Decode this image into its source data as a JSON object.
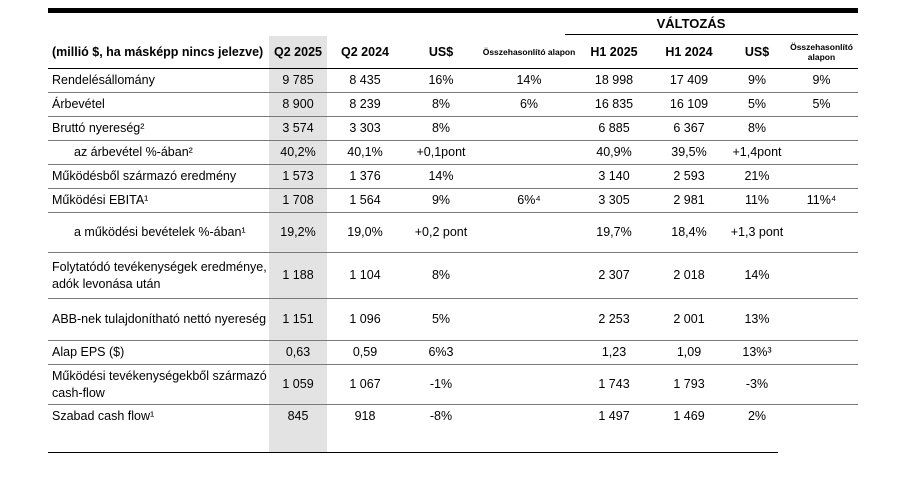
{
  "table": {
    "section_title": "VÁLTOZÁS",
    "headers": {
      "label": "(millió $, ha másképp nincs jelezve)",
      "q2_2025": "Q2 2025",
      "q2_2024": "Q2 2024",
      "usd_q": "US$",
      "comp_q": "Összehasonlító alapon",
      "h1_2025": "H1 2025",
      "h1_2024": "H1 2024",
      "usd_h": "US$",
      "comp_h": "Összehasonlító alapon"
    },
    "rows": [
      {
        "label": "Rendelésállomány",
        "q2_2025": "9 785",
        "q2_2024": "8 435",
        "usd_q": "16%",
        "comp_q": "14%",
        "h1_2025": "18 998",
        "h1_2024": "17 409",
        "usd_h": "9%",
        "comp_h": "9%"
      },
      {
        "label": "Árbevétel",
        "q2_2025": "8 900",
        "q2_2024": "8 239",
        "usd_q": "8%",
        "comp_q": "6%",
        "h1_2025": "16 835",
        "h1_2024": "16 109",
        "usd_h": "5%",
        "comp_h": "5%"
      },
      {
        "label": "Bruttó nyereség²",
        "q2_2025": "3 574",
        "q2_2024": "3 303",
        "usd_q": "8%",
        "comp_q": "",
        "h1_2025": "6 885",
        "h1_2024": "6 367",
        "usd_h": "8%",
        "comp_h": ""
      },
      {
        "label": "az árbevétel %-ában²",
        "q2_2025": "40,2%",
        "q2_2024": "40,1%",
        "usd_q": "+0,1pont",
        "comp_q": "",
        "h1_2025": "40,9%",
        "h1_2024": "39,5%",
        "usd_h": "+1,4pont",
        "comp_h": ""
      },
      {
        "label": "Működésből származó eredmény",
        "q2_2025": "1 573",
        "q2_2024": "1 376",
        "usd_q": "14%",
        "comp_q": "",
        "h1_2025": "3 140",
        "h1_2024": "2 593",
        "usd_h": "21%",
        "comp_h": ""
      },
      {
        "label": "Működési EBITA¹",
        "q2_2025": "1 708",
        "q2_2024": "1 564",
        "usd_q": "9%",
        "comp_q": "6%⁴",
        "h1_2025": "3 305",
        "h1_2024": "2 981",
        "usd_h": "11%",
        "comp_h": "11%⁴"
      },
      {
        "label": "a működési bevételek %-ában¹",
        "q2_2025": "19,2%",
        "q2_2024": "19,0%",
        "usd_q": "+0,2 pont",
        "comp_q": "",
        "h1_2025": "19,7%",
        "h1_2024": "18,4%",
        "usd_h": "+1,3 pont",
        "comp_h": ""
      },
      {
        "label": "Folytatódó tevékenységek eredménye, adók levonása után",
        "q2_2025": "1 188",
        "q2_2024": "1 104",
        "usd_q": "8%",
        "comp_q": "",
        "h1_2025": "2 307",
        "h1_2024": "2 018",
        "usd_h": "14%",
        "comp_h": ""
      },
      {
        "label": "ABB-nek tulajdonítható nettó nyereség",
        "q2_2025": "1 151",
        "q2_2024": "1 096",
        "usd_q": "5%",
        "comp_q": "",
        "h1_2025": "2 253",
        "h1_2024": "2 001",
        "usd_h": "13%",
        "comp_h": ""
      },
      {
        "label": "Alap EPS ($)",
        "q2_2025": "0,63",
        "q2_2024": "0,59",
        "usd_q": "6%3",
        "comp_q": "",
        "h1_2025": "1,23",
        "h1_2024": "1,09",
        "usd_h": "13%³",
        "comp_h": ""
      },
      {
        "label": "Működési tevékenységekből származó cash-flow",
        "q2_2025": "1 059",
        "q2_2024": "1 067",
        "usd_q": "-1%",
        "comp_q": "",
        "h1_2025": "1 743",
        "h1_2024": "1 793",
        "usd_h": "-3%",
        "comp_h": ""
      },
      {
        "label": "Szabad cash flow¹",
        "q2_2025": "845",
        "q2_2024": "918",
        "usd_q": "-8%",
        "comp_q": "",
        "h1_2025": "1 497",
        "h1_2024": "1 469",
        "usd_h": "2%",
        "comp_h": ""
      }
    ]
  }
}
